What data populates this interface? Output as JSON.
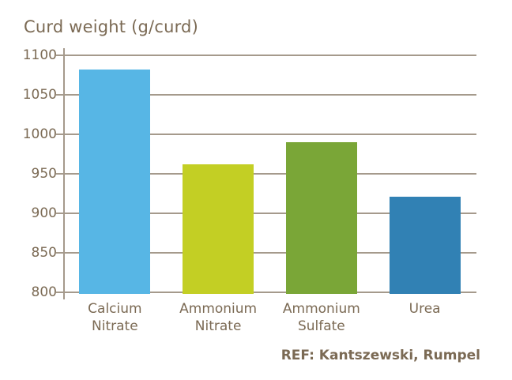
{
  "chart_data": {
    "type": "bar",
    "title": "Curd weight (g/curd)",
    "categories": [
      "Calcium Nitrate",
      "Ammonium Nitrate",
      "Ammonium Sulfate",
      "Urea"
    ],
    "category_lines": [
      [
        "Calcium",
        "Nitrate"
      ],
      [
        "Ammonium",
        "Nitrate"
      ],
      [
        "Ammonium",
        "Sulfate"
      ],
      [
        "Urea"
      ]
    ],
    "values": [
      1082,
      962,
      990,
      921
    ],
    "bar_colors": [
      "#57b6e5",
      "#c3cf24",
      "#7aa637",
      "#3181b4"
    ],
    "ylim": [
      800,
      1100
    ],
    "yticks": [
      1100,
      1050,
      1000,
      950,
      900,
      850,
      800
    ],
    "xlabel": "",
    "ylabel": "",
    "grid": true,
    "legend": "none"
  },
  "footer": {
    "ref": "REF: Kantszewski, Rumpel"
  },
  "colors": {
    "text": "#7b6a54",
    "grid": "#a59a8c",
    "background": "#ffffff"
  }
}
